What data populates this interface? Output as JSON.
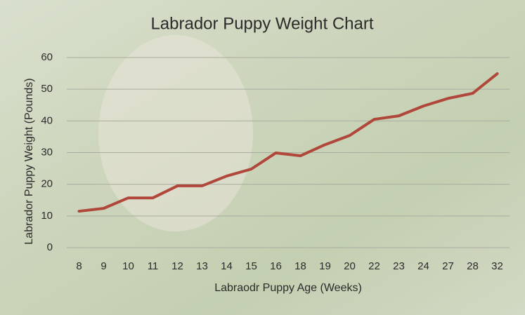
{
  "chart_data": {
    "type": "line",
    "title": "Labrador Puppy Weight Chart",
    "x_label": "Labraodr Puppy Age (Weeks)",
    "y_label": "Labrador Puppy Weight (Pounds)",
    "categories": [
      "8",
      "9",
      "10",
      "11",
      "12",
      "13",
      "14",
      "15",
      "16",
      "18",
      "19",
      "20",
      "22",
      "23",
      "24",
      "27",
      "28",
      "32"
    ],
    "values": [
      11.5,
      12.4,
      15.7,
      15.7,
      19.5,
      19.5,
      22.6,
      24.8,
      29.9,
      29,
      32.5,
      35.4,
      40.5,
      41.6,
      44.7,
      47.1,
      48.7,
      54.9
    ],
    "color": "#b0473a",
    "ylim": [
      0,
      60
    ],
    "yticks": [
      0,
      10,
      20,
      30,
      40,
      50,
      60
    ],
    "grid": true
  }
}
